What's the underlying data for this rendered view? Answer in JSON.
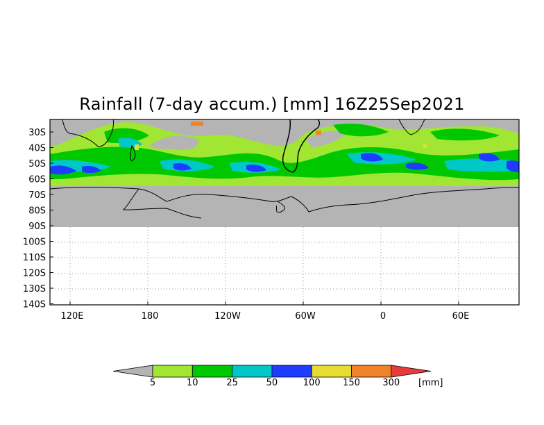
{
  "title": "Rainfall (7-day accum.) [mm] 16Z25Sep2021",
  "map": {
    "lat_labels": [
      "30S",
      "40S",
      "50S",
      "60S",
      "70S",
      "80S",
      "90S",
      "100S",
      "110S",
      "120S",
      "130S",
      "140S"
    ],
    "lon_labels": [
      "120E",
      "180",
      "120W",
      "60W",
      "0",
      "60E"
    ],
    "land_color": "#b4b4b4",
    "grid": "dotted"
  },
  "legend": {
    "unit": "[mm]",
    "thresholds": [
      "5",
      "10",
      "25",
      "50",
      "100",
      "150",
      "300"
    ],
    "colors": [
      "#a0e632",
      "#00c800",
      "#00c8c8",
      "#1e3cff",
      "#e6dc32",
      "#f08228",
      "#e63c3c"
    ],
    "below_color": "#b4b4b4"
  }
}
